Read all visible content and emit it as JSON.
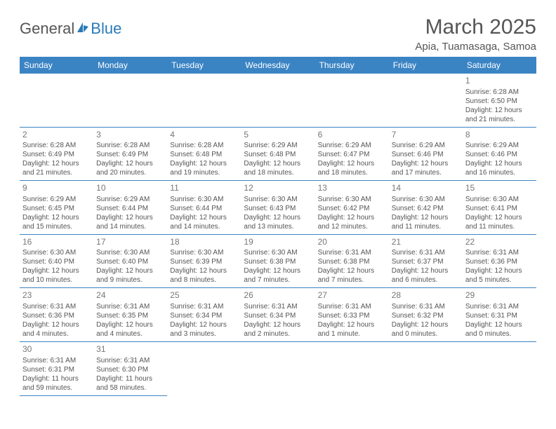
{
  "header": {
    "logo_general": "General",
    "logo_blue": "Blue",
    "month_title": "March 2025",
    "location": "Apia, Tuamasaga, Samoa"
  },
  "colors": {
    "header_bg": "#3b84c4",
    "header_text": "#ffffff",
    "border": "#3b84c4",
    "body_text": "#555555",
    "logo_gray": "#555555",
    "logo_blue": "#2a7ab8",
    "background": "#ffffff"
  },
  "weekdays": [
    "Sunday",
    "Monday",
    "Tuesday",
    "Wednesday",
    "Thursday",
    "Friday",
    "Saturday"
  ],
  "weeks": [
    [
      null,
      null,
      null,
      null,
      null,
      null,
      {
        "n": "1",
        "sr": "6:28 AM",
        "ss": "6:50 PM",
        "dl": "12 hours and 21 minutes."
      }
    ],
    [
      {
        "n": "2",
        "sr": "6:28 AM",
        "ss": "6:49 PM",
        "dl": "12 hours and 21 minutes."
      },
      {
        "n": "3",
        "sr": "6:28 AM",
        "ss": "6:49 PM",
        "dl": "12 hours and 20 minutes."
      },
      {
        "n": "4",
        "sr": "6:28 AM",
        "ss": "6:48 PM",
        "dl": "12 hours and 19 minutes."
      },
      {
        "n": "5",
        "sr": "6:29 AM",
        "ss": "6:48 PM",
        "dl": "12 hours and 18 minutes."
      },
      {
        "n": "6",
        "sr": "6:29 AM",
        "ss": "6:47 PM",
        "dl": "12 hours and 18 minutes."
      },
      {
        "n": "7",
        "sr": "6:29 AM",
        "ss": "6:46 PM",
        "dl": "12 hours and 17 minutes."
      },
      {
        "n": "8",
        "sr": "6:29 AM",
        "ss": "6:46 PM",
        "dl": "12 hours and 16 minutes."
      }
    ],
    [
      {
        "n": "9",
        "sr": "6:29 AM",
        "ss": "6:45 PM",
        "dl": "12 hours and 15 minutes."
      },
      {
        "n": "10",
        "sr": "6:29 AM",
        "ss": "6:44 PM",
        "dl": "12 hours and 14 minutes."
      },
      {
        "n": "11",
        "sr": "6:30 AM",
        "ss": "6:44 PM",
        "dl": "12 hours and 14 minutes."
      },
      {
        "n": "12",
        "sr": "6:30 AM",
        "ss": "6:43 PM",
        "dl": "12 hours and 13 minutes."
      },
      {
        "n": "13",
        "sr": "6:30 AM",
        "ss": "6:42 PM",
        "dl": "12 hours and 12 minutes."
      },
      {
        "n": "14",
        "sr": "6:30 AM",
        "ss": "6:42 PM",
        "dl": "12 hours and 11 minutes."
      },
      {
        "n": "15",
        "sr": "6:30 AM",
        "ss": "6:41 PM",
        "dl": "12 hours and 11 minutes."
      }
    ],
    [
      {
        "n": "16",
        "sr": "6:30 AM",
        "ss": "6:40 PM",
        "dl": "12 hours and 10 minutes."
      },
      {
        "n": "17",
        "sr": "6:30 AM",
        "ss": "6:40 PM",
        "dl": "12 hours and 9 minutes."
      },
      {
        "n": "18",
        "sr": "6:30 AM",
        "ss": "6:39 PM",
        "dl": "12 hours and 8 minutes."
      },
      {
        "n": "19",
        "sr": "6:30 AM",
        "ss": "6:38 PM",
        "dl": "12 hours and 7 minutes."
      },
      {
        "n": "20",
        "sr": "6:31 AM",
        "ss": "6:38 PM",
        "dl": "12 hours and 7 minutes."
      },
      {
        "n": "21",
        "sr": "6:31 AM",
        "ss": "6:37 PM",
        "dl": "12 hours and 6 minutes."
      },
      {
        "n": "22",
        "sr": "6:31 AM",
        "ss": "6:36 PM",
        "dl": "12 hours and 5 minutes."
      }
    ],
    [
      {
        "n": "23",
        "sr": "6:31 AM",
        "ss": "6:36 PM",
        "dl": "12 hours and 4 minutes."
      },
      {
        "n": "24",
        "sr": "6:31 AM",
        "ss": "6:35 PM",
        "dl": "12 hours and 4 minutes."
      },
      {
        "n": "25",
        "sr": "6:31 AM",
        "ss": "6:34 PM",
        "dl": "12 hours and 3 minutes."
      },
      {
        "n": "26",
        "sr": "6:31 AM",
        "ss": "6:34 PM",
        "dl": "12 hours and 2 minutes."
      },
      {
        "n": "27",
        "sr": "6:31 AM",
        "ss": "6:33 PM",
        "dl": "12 hours and 1 minute."
      },
      {
        "n": "28",
        "sr": "6:31 AM",
        "ss": "6:32 PM",
        "dl": "12 hours and 0 minutes."
      },
      {
        "n": "29",
        "sr": "6:31 AM",
        "ss": "6:31 PM",
        "dl": "12 hours and 0 minutes."
      }
    ],
    [
      {
        "n": "30",
        "sr": "6:31 AM",
        "ss": "6:31 PM",
        "dl": "11 hours and 59 minutes."
      },
      {
        "n": "31",
        "sr": "6:31 AM",
        "ss": "6:30 PM",
        "dl": "11 hours and 58 minutes."
      },
      null,
      null,
      null,
      null,
      null
    ]
  ],
  "labels": {
    "sunrise": "Sunrise:",
    "sunset": "Sunset:",
    "daylight": "Daylight:"
  }
}
